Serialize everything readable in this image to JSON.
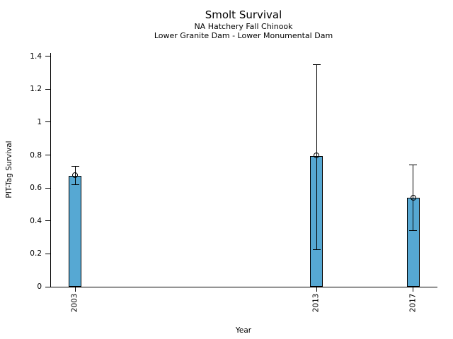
{
  "chart_data": {
    "type": "bar",
    "title": "Smolt Survival",
    "subtitle1": "NA Hatchery Fall Chinook",
    "subtitle2": "Lower Granite Dam - Lower Monumental Dam",
    "xlabel": "Year",
    "ylabel": "PIT-Tag Survival",
    "categories": [
      "2003",
      "2013",
      "2017"
    ],
    "x": [
      2003,
      2013,
      2017
    ],
    "values": [
      0.675,
      0.795,
      0.54
    ],
    "error_low": [
      0.62,
      0.225,
      0.34
    ],
    "error_high": [
      0.73,
      1.35,
      0.74
    ],
    "xlim": [
      2002,
      2018
    ],
    "ylim": [
      0,
      1.42
    ],
    "y_ticks": [
      0,
      0.2,
      0.4,
      0.6,
      0.8,
      1,
      1.2,
      1.4
    ],
    "y_tick_labels": [
      "0",
      "0.2",
      "0.4",
      "0.6",
      "0.8",
      "1",
      "1.2",
      "1.4"
    ],
    "grid": false,
    "legend": null,
    "marker": "open-circle",
    "bar_color": "#56a8d3",
    "bar_edge_color": "#000000",
    "error_bar_color": "#000000",
    "text_color": "#000000",
    "background_color": "#ffffff"
  }
}
